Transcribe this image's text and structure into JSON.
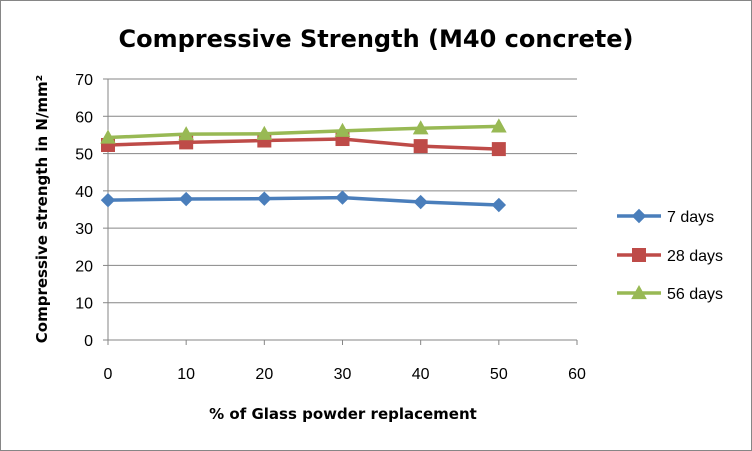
{
  "chart_data": {
    "type": "line",
    "title": "Compressive Strength (M40 concrete)",
    "xlabel": "% of Glass powder replacement",
    "ylabel": "Compressive strength  in N/mm²",
    "x": [
      0,
      10,
      20,
      30,
      40,
      50
    ],
    "xlim": [
      0,
      60
    ],
    "ylim": [
      0,
      70
    ],
    "x_ticks": [
      0,
      10,
      20,
      30,
      40,
      50,
      60
    ],
    "y_ticks": [
      0,
      10,
      20,
      30,
      40,
      50,
      60,
      70
    ],
    "grid": "horizontal",
    "legend_position": "right",
    "series": [
      {
        "name": "7 days",
        "marker": "diamond",
        "color": "#4a7ebb",
        "values": [
          37.5,
          37.8,
          37.9,
          38.2,
          37.0,
          36.2
        ]
      },
      {
        "name": "28 days",
        "marker": "square",
        "color": "#be4b48",
        "values": [
          52.3,
          53.0,
          53.5,
          53.9,
          52.0,
          51.2
        ]
      },
      {
        "name": "56 days",
        "marker": "triangle",
        "color": "#98b954",
        "values": [
          54.3,
          55.2,
          55.3,
          56.1,
          56.8,
          57.3
        ]
      }
    ]
  }
}
